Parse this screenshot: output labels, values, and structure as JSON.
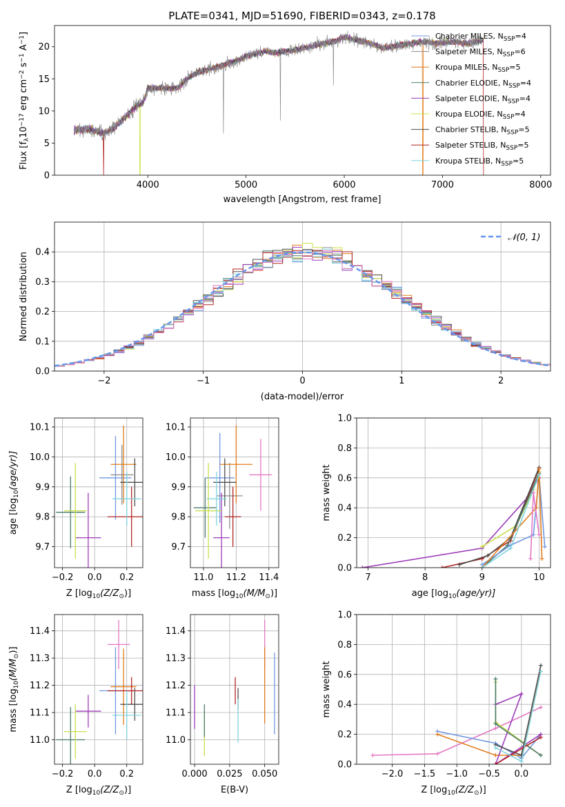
{
  "title": "PLATE=0341, MJD=51690, FIBERID=0343, z=0.178",
  "colors": {
    "Chabrier MILES": "#6f97e0",
    "Salpeter MILES": "#8c8c8c",
    "Kroupa MILES": "#e07b1c",
    "Chabrier ELODIE": "#4a7a6b",
    "Salpeter ELODIE": "#9c3bb8",
    "Kroupa ELODIE": "#c9e04a",
    "Chabrier STELIB": "#4d4d4d",
    "Salpeter STELIB": "#b22222",
    "Kroupa STELIB": "#7fd4de",
    "pink": "#e377c2",
    "normal": "#6495ed"
  },
  "chart_data": [
    {
      "id": "spectrum",
      "type": "line",
      "title": "PLATE=0341, MJD=51690, FIBERID=0343, z=0.178",
      "xlabel": "wavelength [Angstrom, rest frame]",
      "ylabel_main": "Flux [f",
      "ylabel_sub": "λ",
      "ylabel_rest": "10",
      "ylabel_exp": "−17",
      "ylabel_tail": " erg cm",
      "ylabel_exp2": "−2",
      "ylabel_tail2": " s",
      "ylabel_exp3": "−1",
      "ylabel_tail3": " A",
      "ylabel_exp4": "−1",
      "ylabel_end": "]",
      "xlim": [
        3050,
        8100
      ],
      "ylim": [
        0,
        23.3
      ],
      "xticks": [
        4000,
        5000,
        6000,
        7000,
        8000
      ],
      "yticks": [
        0,
        5,
        10,
        15,
        20
      ],
      "legend_location": "right",
      "series": [
        {
          "name": "Chabrier MILES, N",
          "sub": "SSP",
          "tail": "=4"
        },
        {
          "name": "Salpeter MILES, N",
          "sub": "SSP",
          "tail": "=6"
        },
        {
          "name": "Kroupa MILES, N",
          "sub": "SSP",
          "tail": "=5"
        },
        {
          "name": "Chabrier ELODIE, N",
          "sub": "SSP",
          "tail": "=4"
        },
        {
          "name": "Salpeter ELODIE, N",
          "sub": "SSP",
          "tail": "=4"
        },
        {
          "name": "Kroupa ELODIE, N",
          "sub": "SSP",
          "tail": "=4"
        },
        {
          "name": "Chabrier STELIB, N",
          "sub": "SSP",
          "tail": "=5"
        },
        {
          "name": "Salpeter STELIB, N",
          "sub": "SSP",
          "tail": "=5"
        },
        {
          "name": "Kroupa STELIB, N",
          "sub": "SSP",
          "tail": "=5"
        }
      ],
      "continuum": [
        [
          3250,
          7.0
        ],
        [
          3400,
          7.2
        ],
        [
          3550,
          6.5
        ],
        [
          3650,
          7.2
        ],
        [
          3700,
          8.0
        ],
        [
          3800,
          9.5
        ],
        [
          3900,
          11.0
        ],
        [
          3950,
          11.2
        ],
        [
          4000,
          13.5
        ],
        [
          4100,
          13.6
        ],
        [
          4300,
          13.5
        ],
        [
          4400,
          15.0
        ],
        [
          4500,
          16.0
        ],
        [
          4700,
          16.8
        ],
        [
          4900,
          17.8
        ],
        [
          5000,
          18.5
        ],
        [
          5200,
          19.3
        ],
        [
          5300,
          19.0
        ],
        [
          5500,
          19.5
        ],
        [
          5700,
          20.2
        ],
        [
          5900,
          20.8
        ],
        [
          6000,
          21.5
        ],
        [
          6200,
          20.8
        ],
        [
          6400,
          19.8
        ],
        [
          6600,
          20.3
        ],
        [
          6800,
          20.8
        ],
        [
          6950,
          20.5
        ],
        [
          7100,
          20.8
        ],
        [
          7250,
          20.5
        ],
        [
          7400,
          21.0
        ]
      ],
      "dips": [
        [
          3550,
          0,
          "Salpeter STELIB"
        ],
        [
          3920,
          0,
          "Kroupa ELODIE"
        ],
        [
          4770,
          6.5,
          "Salpeter MILES"
        ],
        [
          5890,
          14.0,
          "Salpeter MILES"
        ],
        [
          5350,
          8.5,
          "Salpeter MILES"
        ],
        [
          6800,
          0,
          "Kroupa MILES"
        ],
        [
          7420,
          0,
          "Salpeter STELIB"
        ]
      ]
    },
    {
      "id": "residual-histogram",
      "type": "bar",
      "xlabel": "(data-model)/error",
      "ylabel": "Normed distribution",
      "xlim": [
        -2.5,
        2.5
      ],
      "ylim": [
        0,
        0.5
      ],
      "xticks": [
        -2,
        -1,
        0,
        1,
        2
      ],
      "yticks": [
        0.0,
        0.1,
        0.2,
        0.3,
        0.4
      ],
      "legend": "𝒩(0, 1)",
      "legend_location": "top-right",
      "bin_width": 0.1
    },
    {
      "id": "age-vs-Z",
      "type": "scatter",
      "xlabel": "Z [log",
      "xlabel_sub": "10",
      "xlabel_mid": "(Z/Z",
      "xlabel_sub2": "⊙",
      "xlabel_end": ")]",
      "ylabel": "age  [log",
      "ylabel_sub": "10",
      "ylabel_end": "(age/yr)]",
      "xlim": [
        -0.25,
        0.3
      ],
      "ylim": [
        9.63,
        10.13
      ],
      "xticks": [
        -0.2,
        0.0,
        0.2
      ],
      "yticks": [
        9.7,
        9.8,
        9.9,
        10.0,
        10.1
      ],
      "points": [
        {
          "s": "Chabrier MILES",
          "x": 0.13,
          "xe": 0.1,
          "y": 9.93,
          "ye": 0.14
        },
        {
          "s": "Salpeter MILES",
          "x": 0.17,
          "xe": 0.07,
          "y": 9.94,
          "ye": 0.1
        },
        {
          "s": "Kroupa MILES",
          "x": 0.18,
          "xe": 0.08,
          "y": 9.975,
          "ye": 0.13
        },
        {
          "s": "Chabrier ELODIE",
          "x": -0.15,
          "xe": 0.09,
          "y": 9.815,
          "ye": 0.12
        },
        {
          "s": "Salpeter ELODIE",
          "x": -0.04,
          "xe": 0.08,
          "y": 9.73,
          "ye": 0.15
        },
        {
          "s": "Kroupa ELODIE",
          "x": -0.12,
          "xe": 0.07,
          "y": 9.82,
          "ye": 0.16
        },
        {
          "s": "Chabrier STELIB",
          "x": 0.25,
          "xe": 0.09,
          "y": 9.915,
          "ye": 0.08
        },
        {
          "s": "Salpeter STELIB",
          "x": 0.23,
          "xe": 0.15,
          "y": 9.8,
          "ye": 0.1
        },
        {
          "s": "Kroupa STELIB",
          "x": 0.2,
          "xe": 0.09,
          "y": 9.86,
          "ye": 0.09
        }
      ]
    },
    {
      "id": "age-vs-mass",
      "type": "scatter",
      "xlabel": "mass [log",
      "xlabel_sub": "10",
      "xlabel_mid": "(M/M",
      "xlabel_sub2": "⊙",
      "xlabel_end": ")]",
      "xlim": [
        10.92,
        11.46
      ],
      "ylim": [
        9.63,
        10.13
      ],
      "xticks": [
        11.0,
        11.2,
        11.4
      ],
      "yticks": [
        9.7,
        9.8,
        9.9,
        10.0,
        10.1
      ],
      "points": [
        {
          "s": "Chabrier MILES",
          "x": 11.1,
          "xe": 0.09,
          "y": 9.93,
          "ye": 0.15
        },
        {
          "s": "Salpeter MILES",
          "x": 11.16,
          "xe": 0.08,
          "y": 9.87,
          "ye": 0.11
        },
        {
          "s": "Kroupa MILES",
          "x": 11.2,
          "xe": 0.1,
          "y": 9.975,
          "ye": 0.13
        },
        {
          "s": "Chabrier ELODIE",
          "x": 11.01,
          "xe": 0.07,
          "y": 9.83,
          "ye": 0.1
        },
        {
          "s": "Salpeter ELODIE",
          "x": 11.11,
          "xe": 0.05,
          "y": 9.73,
          "ye": 0.15
        },
        {
          "s": "Kroupa ELODIE",
          "x": 11.03,
          "xe": 0.08,
          "y": 9.82,
          "ye": 0.16
        },
        {
          "s": "Chabrier STELIB",
          "x": 11.13,
          "xe": 0.07,
          "y": 9.915,
          "ye": 0.08
        },
        {
          "s": "Salpeter STELIB",
          "x": 11.18,
          "xe": 0.05,
          "y": 9.8,
          "ye": 0.1
        },
        {
          "s": "Kroupa STELIB",
          "x": 11.08,
          "xe": 0.06,
          "y": 9.86,
          "ye": 0.09
        },
        {
          "s": "pink",
          "x": 11.35,
          "xe": 0.07,
          "y": 9.94,
          "ye": 0.12
        }
      ]
    },
    {
      "id": "mass-weight-vs-age",
      "type": "line",
      "xlabel": "age  [log",
      "xlabel_sub": "10",
      "xlabel_end": "(age/yr)]",
      "ylabel": "mass weight",
      "xlim": [
        6.8,
        10.2
      ],
      "ylim": [
        0,
        1
      ],
      "xticks": [
        7,
        8,
        9,
        10
      ],
      "yticks": [
        0.0,
        0.2,
        0.4,
        0.6,
        0.8,
        1.0
      ],
      "series": [
        {
          "s": "Salpeter ELODIE",
          "pts": [
            [
              6.9,
              0.0
            ],
            [
              9.0,
              0.13
            ],
            [
              9.8,
              0.47
            ],
            [
              10.0,
              0.6
            ]
          ]
        },
        {
          "s": "Kroupa ELODIE",
          "pts": [
            [
              9.0,
              0.14
            ],
            [
              9.6,
              0.28
            ],
            [
              9.9,
              0.52
            ],
            [
              10.0,
              0.64
            ]
          ]
        },
        {
          "s": "Salpeter STELIB",
          "pts": [
            [
              8.3,
              0.0
            ],
            [
              9.0,
              0.06
            ],
            [
              9.5,
              0.18
            ],
            [
              10.0,
              0.66
            ]
          ]
        },
        {
          "s": "Chabrier STELIB",
          "pts": [
            [
              8.6,
              0.02
            ],
            [
              9.1,
              0.08
            ],
            [
              9.5,
              0.2
            ],
            [
              10.0,
              0.67
            ]
          ]
        },
        {
          "s": "Chabrier ELODIE",
          "pts": [
            [
              9.0,
              0.0
            ],
            [
              9.45,
              0.15
            ],
            [
              10.0,
              0.63
            ]
          ]
        },
        {
          "s": "Chabrier MILES",
          "pts": [
            [
              9.0,
              0.02
            ],
            [
              9.5,
              0.15
            ],
            [
              9.9,
              0.22
            ],
            [
              10.0,
              0.62
            ],
            [
              10.1,
              0.14
            ]
          ]
        },
        {
          "s": "Kroupa MILES",
          "pts": [
            [
              9.0,
              0.0
            ],
            [
              9.95,
              0.4
            ],
            [
              10.0,
              0.66
            ],
            [
              10.05,
              0.06
            ]
          ]
        },
        {
          "s": "Kroupa STELIB",
          "pts": [
            [
              9.0,
              0.0
            ],
            [
              9.5,
              0.13
            ],
            [
              10.0,
              0.62
            ]
          ]
        },
        {
          "s": "pink",
          "pts": [
            [
              9.85,
              0.06
            ],
            [
              9.9,
              0.5
            ],
            [
              10.0,
              0.22
            ]
          ]
        }
      ]
    },
    {
      "id": "mass-vs-Z",
      "type": "scatter",
      "xlabel": "Z [log",
      "xlabel_sub": "10",
      "xlabel_mid": "(Z/Z",
      "xlabel_sub2": "⊙",
      "xlabel_end": ")]",
      "ylabel": "mass [log",
      "ylabel_sub": "10",
      "ylabel_mid": "(M/M",
      "ylabel_sub2": "⊙",
      "ylabel_end": ")]",
      "xlim": [
        -0.25,
        0.3
      ],
      "ylim": [
        10.91,
        11.46
      ],
      "xticks": [
        -0.2,
        0.0,
        0.2
      ],
      "yticks": [
        11.0,
        11.1,
        11.2,
        11.3,
        11.4
      ],
      "points": [
        {
          "s": "Chabrier MILES",
          "x": 0.13,
          "xe": 0.1,
          "y": 11.18,
          "ye": 0.16
        },
        {
          "s": "Kroupa MILES",
          "x": 0.18,
          "xe": 0.08,
          "y": 11.195,
          "ye": 0.14
        },
        {
          "s": "Chabrier ELODIE",
          "x": -0.15,
          "xe": 0.09,
          "y": 11.0,
          "ye": 0.12
        },
        {
          "s": "Salpeter ELODIE",
          "x": -0.04,
          "xe": 0.08,
          "y": 11.105,
          "ye": 0.06
        },
        {
          "s": "Kroupa ELODIE",
          "x": -0.12,
          "xe": 0.07,
          "y": 11.03,
          "ye": 0.1
        },
        {
          "s": "Chabrier STELIB",
          "x": 0.25,
          "xe": 0.09,
          "y": 11.13,
          "ye": 0.06
        },
        {
          "s": "Salpeter STELIB",
          "x": 0.23,
          "xe": 0.15,
          "y": 11.18,
          "ye": 0.05
        },
        {
          "s": "Kroupa STELIB",
          "x": 0.2,
          "xe": 0.09,
          "y": 11.09,
          "ye": 0.09
        },
        {
          "s": "pink",
          "x": 0.15,
          "xe": 0.07,
          "y": 11.35,
          "ye": 0.09
        }
      ]
    },
    {
      "id": "mass-vs-EBV",
      "type": "scatter",
      "xlabel": "E(B-V)",
      "xlim": [
        -0.003,
        0.06
      ],
      "ylim": [
        10.91,
        11.46
      ],
      "xticks": [
        0.0,
        0.025,
        0.05
      ],
      "yticks": [
        11.0,
        11.1,
        11.2,
        11.3,
        11.4
      ],
      "points": [
        {
          "s": "Salpeter ELODIE",
          "x": 0.0,
          "y": 11.12,
          "ye": 0.08
        },
        {
          "s": "Kroupa ELODIE",
          "x": 0.007,
          "y": 11.02,
          "ye": 0.08
        },
        {
          "s": "Chabrier ELODIE",
          "x": 0.007,
          "y": 11.07,
          "ye": 0.06
        },
        {
          "s": "Salpeter STELIB",
          "x": 0.029,
          "y": 11.18,
          "ye": 0.05
        },
        {
          "s": "Chabrier STELIB",
          "x": 0.031,
          "y": 11.15,
          "ye": 0.04
        },
        {
          "s": "Kroupa STELIB",
          "x": 0.031,
          "y": 11.07,
          "ye": 0.08
        },
        {
          "s": "pink",
          "x": 0.05,
          "y": 11.35,
          "ye": 0.09
        },
        {
          "s": "Kroupa MILES",
          "x": 0.05,
          "y": 11.2,
          "ye": 0.14
        },
        {
          "s": "Chabrier MILES",
          "x": 0.057,
          "y": 11.17,
          "ye": 0.15
        }
      ]
    },
    {
      "id": "mass-weight-vs-Z",
      "type": "line",
      "xlabel": "Z [log",
      "xlabel_sub": "10",
      "xlabel_mid": "(Z/Z",
      "xlabel_sub2": "⊙",
      "xlabel_end": ")]",
      "ylabel": "mass weight",
      "xlim": [
        -2.55,
        0.45
      ],
      "ylim": [
        0,
        1
      ],
      "xticks": [
        -2.0,
        -1.5,
        -1.0,
        -0.5,
        0.0
      ],
      "yticks": [
        0.0,
        0.2,
        0.4,
        0.6,
        0.8,
        1.0
      ],
      "series": [
        {
          "s": "pink",
          "pts": [
            [
              -2.3,
              0.06
            ],
            [
              -1.3,
              0.07
            ],
            [
              -0.4,
              0.24
            ],
            [
              0.3,
              0.38
            ]
          ]
        },
        {
          "s": "Chabrier MILES",
          "pts": [
            [
              -1.3,
              0.22
            ],
            [
              -0.4,
              0.14
            ],
            [
              0.0,
              0.04
            ],
            [
              0.3,
              0.2
            ]
          ]
        },
        {
          "s": "Kroupa MILES",
          "pts": [
            [
              -1.3,
              0.2
            ],
            [
              -0.4,
              0.06
            ],
            [
              0.0,
              0.06
            ],
            [
              0.3,
              0.62
            ]
          ]
        },
        {
          "s": "Salpeter ELODIE",
          "pts": [
            [
              -0.4,
              0.4
            ],
            [
              0.0,
              0.47
            ],
            [
              -0.4,
              0.0
            ],
            [
              0.3,
              0.2
            ]
          ]
        },
        {
          "s": "Kroupa ELODIE",
          "pts": [
            [
              -0.4,
              0.55
            ],
            [
              -0.4,
              0.28
            ],
            [
              0.3,
              0.06
            ]
          ]
        },
        {
          "s": "Chabrier ELODIE",
          "pts": [
            [
              -0.4,
              0.57
            ],
            [
              -0.4,
              0.27
            ],
            [
              0.3,
              0.06
            ]
          ]
        },
        {
          "s": "Chabrier STELIB",
          "pts": [
            [
              -0.4,
              0.13
            ],
            [
              0.0,
              0.06
            ],
            [
              0.3,
              0.66
            ]
          ]
        },
        {
          "s": "Salpeter STELIB",
          "pts": [
            [
              -0.4,
              0.0
            ],
            [
              0.3,
              0.18
            ]
          ]
        },
        {
          "s": "Kroupa STELIB",
          "pts": [
            [
              -0.4,
              0.11
            ],
            [
              0.0,
              0.02
            ],
            [
              0.3,
              0.62
            ]
          ]
        }
      ]
    }
  ]
}
